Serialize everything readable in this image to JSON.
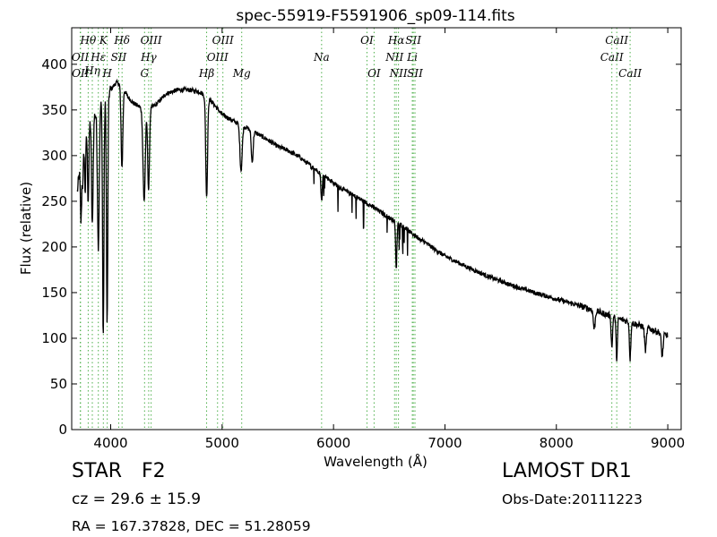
{
  "chart_data": {
    "type": "line",
    "title": "spec-55919-F5591906_sp09-114.fits",
    "xlabel": "Wavelength (Å)",
    "ylabel": "Flux (relative)",
    "xlim": [
      3650,
      9120
    ],
    "ylim": [
      0,
      440
    ],
    "xticks": [
      4000,
      5000,
      6000,
      7000,
      8000,
      9000
    ],
    "yticks": [
      0,
      50,
      100,
      150,
      200,
      250,
      300,
      350,
      400
    ],
    "grid": false,
    "legend": "none",
    "line_color": "#000000",
    "marker_color": "#4daf4a",
    "continuum": {
      "x": [
        3700,
        3740,
        3780,
        3820,
        3860,
        3900,
        3950,
        4000,
        4050,
        4100,
        4150,
        4200,
        4300,
        4400,
        4500,
        4600,
        4700,
        4800,
        4900,
        5000,
        5100,
        5200,
        5300,
        5400,
        5500,
        5600,
        5700,
        5800,
        5900,
        6000,
        6100,
        6200,
        6300,
        6400,
        6500,
        6600,
        6700,
        6800,
        6900,
        7000,
        7200,
        7400,
        7600,
        7800,
        8000,
        8200,
        8400,
        8600,
        8800,
        9000
      ],
      "y": [
        260,
        305,
        325,
        340,
        345,
        355,
        362,
        372,
        380,
        378,
        365,
        358,
        350,
        355,
        368,
        372,
        372,
        370,
        360,
        345,
        338,
        332,
        325,
        318,
        310,
        305,
        298,
        288,
        280,
        270,
        262,
        255,
        248,
        240,
        232,
        225,
        215,
        207,
        198,
        190,
        178,
        167,
        158,
        150,
        143,
        136,
        128,
        120,
        112,
        103
      ]
    },
    "absorption": [
      {
        "center": 3734,
        "depth": 70,
        "width": 6
      },
      {
        "center": 3750,
        "depth": 40,
        "width": 5
      },
      {
        "center": 3771,
        "depth": 60,
        "width": 5
      },
      {
        "center": 3798,
        "depth": 80,
        "width": 6
      },
      {
        "center": 3835,
        "depth": 120,
        "width": 7
      },
      {
        "center": 3889,
        "depth": 150,
        "width": 8
      },
      {
        "center": 3933,
        "depth": 260,
        "width": 6
      },
      {
        "center": 3968,
        "depth": 250,
        "width": 6
      },
      {
        "center": 4101,
        "depth": 90,
        "width": 8
      },
      {
        "center": 4300,
        "depth": 100,
        "width": 10
      },
      {
        "center": 4340,
        "depth": 90,
        "width": 8
      },
      {
        "center": 4861,
        "depth": 110,
        "width": 8
      },
      {
        "center": 5170,
        "depth": 50,
        "width": 10
      },
      {
        "center": 5270,
        "depth": 35,
        "width": 8
      },
      {
        "center": 5893,
        "depth": 30,
        "width": 6
      },
      {
        "center": 6563,
        "depth": 50,
        "width": 6
      },
      {
        "center": 8340,
        "depth": 20,
        "width": 8
      },
      {
        "center": 8498,
        "depth": 35,
        "width": 6
      },
      {
        "center": 8542,
        "depth": 45,
        "width": 6
      },
      {
        "center": 8662,
        "depth": 40,
        "width": 6
      },
      {
        "center": 8800,
        "depth": 25,
        "width": 8
      },
      {
        "center": 8950,
        "depth": 25,
        "width": 8
      }
    ],
    "lines": [
      {
        "x": 3727,
        "label": "OII",
        "row": 1
      },
      {
        "x": 3729,
        "label": "OII",
        "row": 2
      },
      {
        "x": 3798,
        "label": "Hθ",
        "row": 0
      },
      {
        "x": 3835,
        "label": "Hη",
        "row": 1.5
      },
      {
        "x": 3889,
        "label": "Hε",
        "row": 1
      },
      {
        "x": 3934,
        "label": "K",
        "row": 0
      },
      {
        "x": 3969,
        "label": "H",
        "row": 2
      },
      {
        "x": 4072,
        "label": "SII",
        "row": 1
      },
      {
        "x": 4102,
        "label": "Hδ",
        "row": 0
      },
      {
        "x": 4304,
        "label": "G",
        "row": 2
      },
      {
        "x": 4341,
        "label": "Hγ",
        "row": 1
      },
      {
        "x": 4363,
        "label": "OIII",
        "row": 0
      },
      {
        "x": 4861,
        "label": "Hβ",
        "row": 2
      },
      {
        "x": 4959,
        "label": "OIII",
        "row": 1
      },
      {
        "x": 5007,
        "label": "OIII",
        "row": 0
      },
      {
        "x": 5176,
        "label": "Mg",
        "row": 2
      },
      {
        "x": 5893,
        "label": "Na",
        "row": 1
      },
      {
        "x": 6300,
        "label": "OI",
        "row": 0
      },
      {
        "x": 6364,
        "label": "OI",
        "row": 2
      },
      {
        "x": 6548,
        "label": "NII",
        "row": 1
      },
      {
        "x": 6563,
        "label": "Hα",
        "row": 0
      },
      {
        "x": 6583,
        "label": "NII",
        "row": 2
      },
      {
        "x": 6707,
        "label": "Li",
        "row": 1
      },
      {
        "x": 6716,
        "label": "SII",
        "row": 0
      },
      {
        "x": 6731,
        "label": "SII",
        "row": 2
      },
      {
        "x": 8498,
        "label": "CaII",
        "row": 1
      },
      {
        "x": 8542,
        "label": "CaII",
        "row": 0
      },
      {
        "x": 8662,
        "label": "CaII",
        "row": 2
      }
    ]
  },
  "info": {
    "class": "STAR",
    "subclass": "F2",
    "survey": "LAMOST DR1",
    "redshift": "cz = 29.6 ± 15.9",
    "obsdate": "Obs-Date:20111223",
    "coords": "RA = 167.37828, DEC = 51.28059"
  }
}
